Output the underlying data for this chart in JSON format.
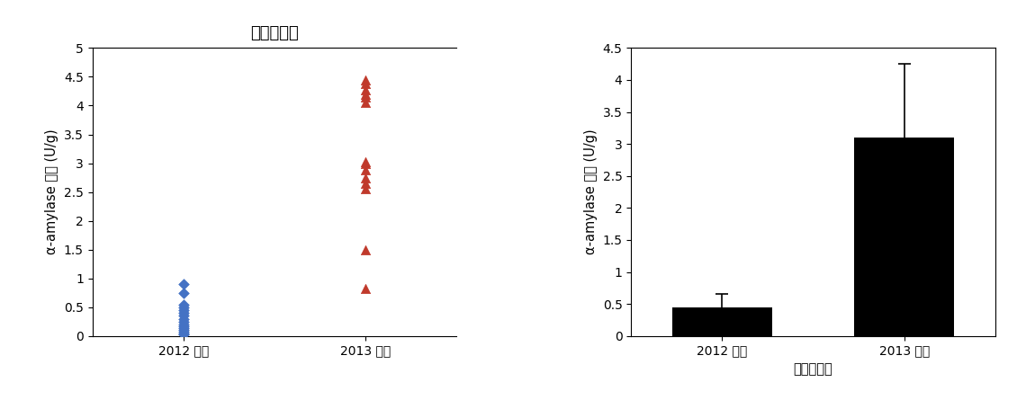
{
  "title_left": "싹쌓고추장",
  "ylabel_left": "α-amylase 활성 (U/g)",
  "xtick_labels_left": [
    "2012 농가",
    "2013 업체"
  ],
  "ylim_left": [
    0,
    5
  ],
  "yticks_left": [
    0,
    0.5,
    1.0,
    1.5,
    2.0,
    2.5,
    3.0,
    3.5,
    4.0,
    4.5,
    5.0
  ],
  "scatter_group1_y": [
    0.03,
    0.05,
    0.07,
    0.1,
    0.13,
    0.17,
    0.2,
    0.25,
    0.3,
    0.35,
    0.4,
    0.45,
    0.5,
    0.55,
    0.75,
    0.9
  ],
  "scatter_group1_color": "#4472C4",
  "scatter_group1_marker": "D",
  "scatter_group2_y": [
    0.82,
    1.5,
    2.55,
    2.65,
    2.75,
    2.88,
    3.0,
    3.02,
    4.05,
    4.15,
    4.2,
    4.28,
    4.38,
    4.45
  ],
  "scatter_group2_color": "#C0392B",
  "scatter_group2_marker": "^",
  "xlabel_right": "싹쌓고추장",
  "ylabel_right": "α-amylase 활성 (U/g)",
  "xtick_labels_right": [
    "2012 농가",
    "2013 업체"
  ],
  "ylim_right": [
    0,
    4.5
  ],
  "yticks_right": [
    0,
    0.5,
    1.0,
    1.5,
    2.0,
    2.5,
    3.0,
    3.5,
    4.0,
    4.5
  ],
  "bar_values": [
    0.44,
    3.1
  ],
  "bar_errors": [
    0.22,
    1.15
  ],
  "bar_color": "#000000",
  "background_color": "#ffffff",
  "title_fontsize": 13,
  "label_fontsize": 10.5,
  "tick_fontsize": 10
}
